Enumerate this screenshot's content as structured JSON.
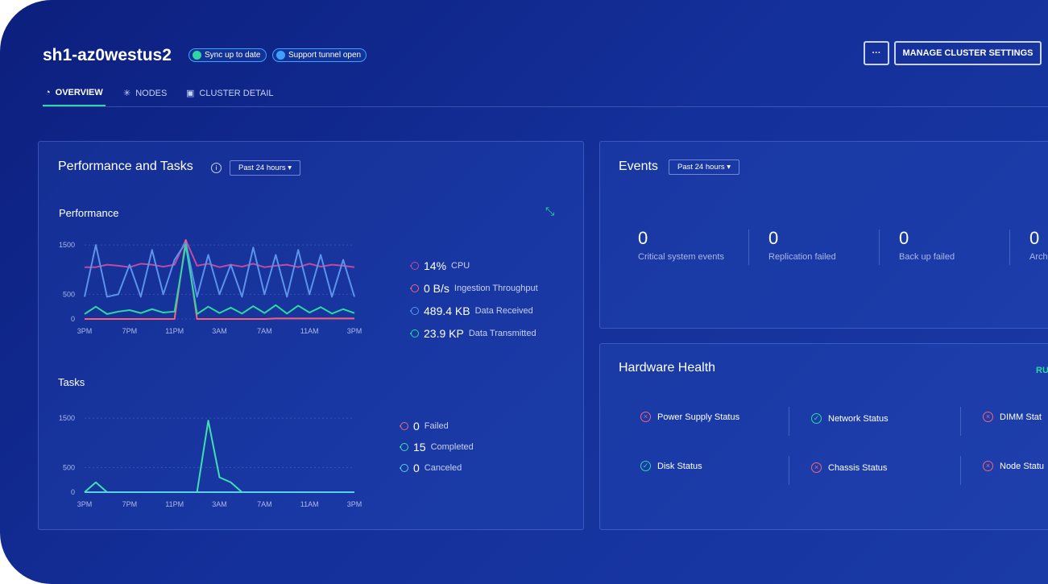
{
  "header": {
    "title": "sh1-az0westus2",
    "badges": [
      "Sync up to date",
      "Support tunnel open"
    ],
    "more": "···",
    "button": "MANAGE CLUSTER SETTINGS"
  },
  "tabs": [
    "OVERVIEW",
    "NODES",
    "CLUSTER DETAIL"
  ],
  "performance_panel": {
    "title": "Performance and Tasks",
    "range": "Past 24 hours",
    "performance_title": "Performance",
    "tasks_title": "Tasks"
  },
  "chart_data": [
    {
      "type": "line",
      "categories": [
        "3PM",
        null,
        null,
        null,
        "7PM",
        null,
        null,
        null,
        "11PM",
        null,
        null,
        null,
        "3AM",
        null,
        null,
        null,
        "7AM",
        null,
        null,
        null,
        "11AM",
        null,
        null,
        null,
        "3PM"
      ],
      "ylim": [
        0,
        1600
      ],
      "yticks": [
        0,
        500,
        1500
      ],
      "grid": true,
      "series": [
        {
          "name": "CPU",
          "current": "14%",
          "color": "#c44aa0",
          "values": [
            1050,
            1050,
            1100,
            1080,
            1050,
            1120,
            1100,
            1060,
            1100,
            1600,
            1080,
            1120,
            1050,
            1100,
            1060,
            1120,
            1050,
            1080,
            1100,
            1050,
            1120,
            1060,
            1100,
            1080,
            1050
          ]
        },
        {
          "name": "Ingestion Throughput",
          "current": "0 B/s",
          "color": "#f2647c",
          "values": [
            0,
            0,
            0,
            0,
            0,
            0,
            0,
            0,
            0,
            1600,
            0,
            0,
            0,
            0,
            0,
            0,
            0,
            10,
            10,
            10,
            10,
            10,
            10,
            10,
            10
          ]
        },
        {
          "name": "Data Received",
          "current": "489.4 KB",
          "color": "#5b93ea",
          "values": [
            450,
            1500,
            450,
            500,
            1100,
            450,
            1400,
            500,
            1200,
            1550,
            450,
            1300,
            500,
            1100,
            450,
            1450,
            500,
            1300,
            450,
            1400,
            500,
            1300,
            450,
            1200,
            450
          ]
        },
        {
          "name": "Data Transmitted",
          "current": "23.9 KP",
          "color": "#2fd8a2",
          "values": [
            100,
            250,
            100,
            150,
            180,
            120,
            200,
            130,
            150,
            1500,
            100,
            250,
            120,
            230,
            110,
            260,
            120,
            280,
            110,
            270,
            130,
            240,
            110,
            200,
            120
          ]
        }
      ]
    },
    {
      "type": "line",
      "categories": [
        "3PM",
        null,
        null,
        null,
        "7PM",
        null,
        null,
        null,
        "11PM",
        null,
        null,
        null,
        "3AM",
        null,
        null,
        null,
        "7AM",
        null,
        null,
        null,
        "11AM",
        null,
        null,
        null,
        "3PM"
      ],
      "ylim": [
        0,
        1600
      ],
      "yticks": [
        0,
        500,
        1500
      ],
      "grid": true,
      "series": [
        {
          "name": "Failed",
          "current": "0",
          "color": "#f2647c",
          "values": [
            0,
            0,
            0,
            0,
            0,
            0,
            0,
            0,
            0,
            0,
            0,
            0,
            0,
            0,
            0,
            0,
            0,
            0,
            0,
            0,
            0,
            0,
            0,
            0,
            0
          ]
        },
        {
          "name": "Completed",
          "current": "15",
          "color": "#3ee0b0",
          "values": [
            0,
            200,
            0,
            0,
            0,
            0,
            0,
            0,
            0,
            0,
            0,
            1450,
            300,
            200,
            0,
            0,
            0,
            0,
            0,
            0,
            0,
            0,
            0,
            0,
            0
          ]
        },
        {
          "name": "Canceled",
          "current": "0",
          "color": "#5ad0e8",
          "values": [
            0,
            0,
            0,
            0,
            0,
            0,
            0,
            0,
            0,
            0,
            0,
            0,
            0,
            0,
            0,
            0,
            0,
            0,
            0,
            0,
            0,
            0,
            0,
            0,
            0
          ]
        }
      ]
    }
  ],
  "events": {
    "title": "Events",
    "range": "Past 24 hours",
    "stats": [
      {
        "value": 0,
        "label": "Critical system events"
      },
      {
        "value": 0,
        "label": "Replication failed"
      },
      {
        "value": 0,
        "label": "Back up failed"
      },
      {
        "value": 0,
        "label": "Arch"
      }
    ]
  },
  "hardware": {
    "title": "Hardware Health",
    "link": "RU",
    "items": [
      {
        "label": "Power Supply Status",
        "status": "fail"
      },
      {
        "label": "Network Status",
        "status": "ok"
      },
      {
        "label": "DIMM Stat",
        "status": "fail"
      },
      {
        "label": "Disk Status",
        "status": "ok"
      },
      {
        "label": "Chassis Status",
        "status": "fail"
      },
      {
        "label": "Node Statu",
        "status": "fail"
      }
    ]
  }
}
